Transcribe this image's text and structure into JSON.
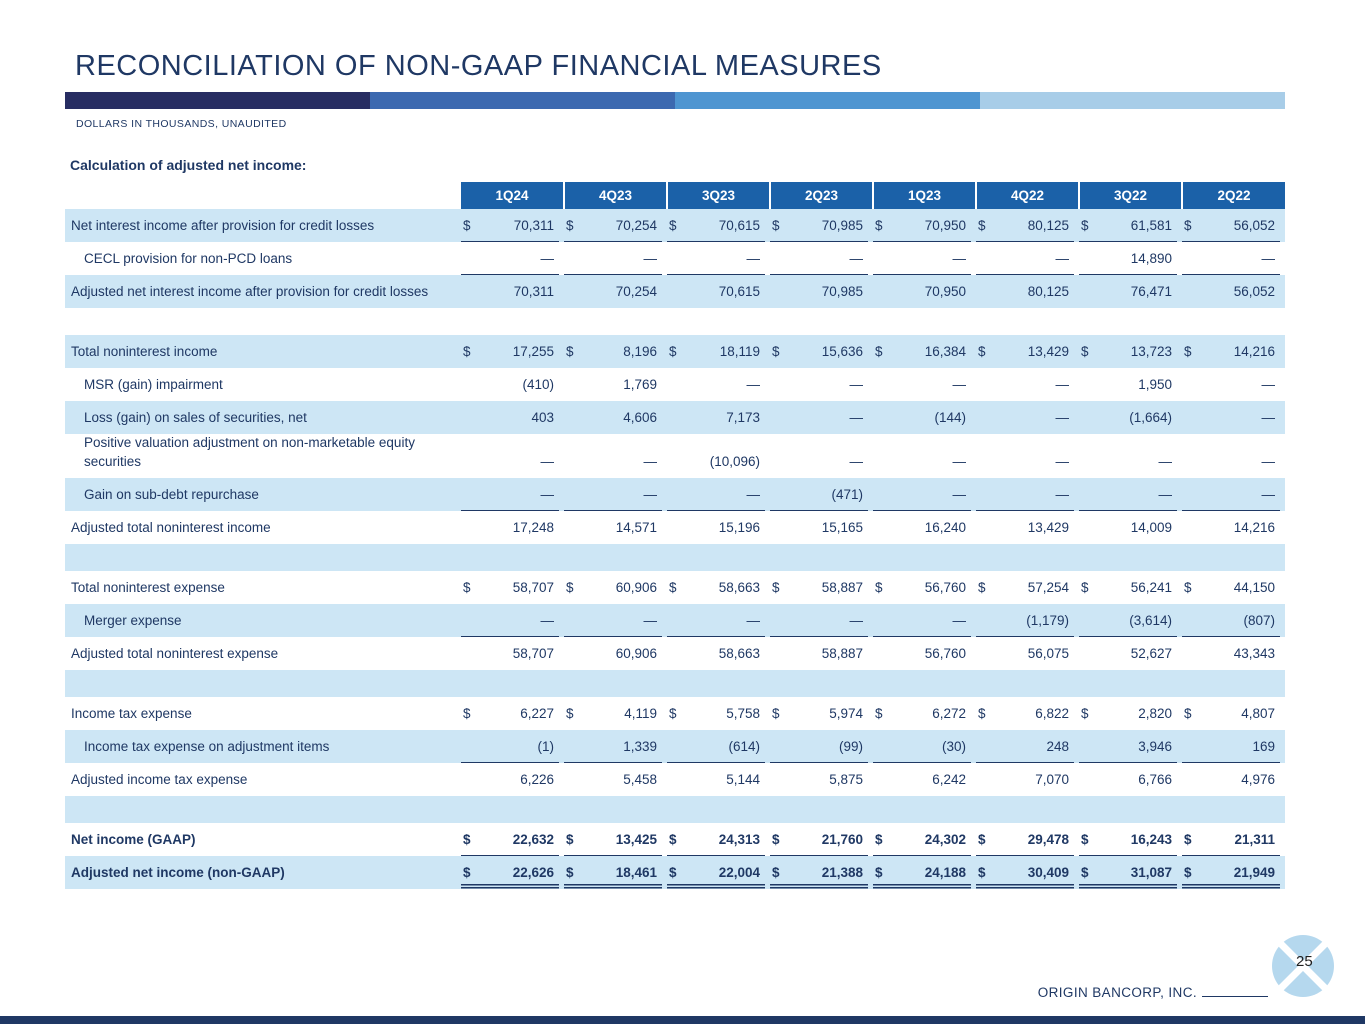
{
  "page": {
    "title": "RECONCILIATION OF NON-GAAP FINANCIAL MEASURES",
    "subtitle": "DOLLARS IN THOUSANDS, UNAUDITED",
    "section_heading": "Calculation of adjusted net income:",
    "company": "ORIGIN BANCORP, INC.",
    "page_number": "25"
  },
  "colors": {
    "navy_text": "#1f3864",
    "header_blue": "#1b61a8",
    "stripe_blue": "#cde6f5",
    "bottom_bar": "#1f3864",
    "logo_blue": "#b5d8ee",
    "bar_segments": [
      "#272d62",
      "#3c69b0",
      "#4e95d1",
      "#a8cde8"
    ]
  },
  "table": {
    "columns": [
      "1Q24",
      "4Q23",
      "3Q23",
      "2Q23",
      "1Q23",
      "4Q22",
      "3Q22",
      "2Q22"
    ],
    "rows": [
      {
        "label": "Net interest income after provision for credit losses",
        "indent": 0,
        "dollar": true,
        "rule": "single",
        "values": [
          "70,311",
          "70,254",
          "70,615",
          "70,985",
          "70,950",
          "80,125",
          "61,581",
          "56,052"
        ]
      },
      {
        "label": "CECL provision for non-PCD loans",
        "indent": 1,
        "rule": "single",
        "values": [
          "—",
          "—",
          "—",
          "—",
          "—",
          "—",
          "14,890",
          "—"
        ]
      },
      {
        "label": "Adjusted net interest income after provision for credit losses",
        "indent": 0,
        "values": [
          "70,311",
          "70,254",
          "70,615",
          "70,985",
          "70,950",
          "80,125",
          "76,471",
          "56,052"
        ]
      },
      {
        "blank": true
      },
      {
        "label": "Total noninterest income",
        "indent": 0,
        "dollar": true,
        "values": [
          "17,255",
          "8,196",
          "18,119",
          "15,636",
          "16,384",
          "13,429",
          "13,723",
          "14,216"
        ]
      },
      {
        "label": "MSR (gain) impairment",
        "indent": 1,
        "values": [
          "(410)",
          "1,769",
          "—",
          "—",
          "—",
          "—",
          "1,950",
          "—"
        ]
      },
      {
        "label": "Loss (gain) on sales of securities, net",
        "indent": 1,
        "values": [
          "403",
          "4,606",
          "7,173",
          "—",
          "(144)",
          "—",
          "(1,664)",
          "—"
        ]
      },
      {
        "label": "Positive valuation adjustment on non-marketable equity securities",
        "indent": 1,
        "values": [
          "—",
          "—",
          "(10,096)",
          "—",
          "—",
          "—",
          "—",
          "—"
        ]
      },
      {
        "label": "Gain on sub-debt repurchase",
        "indent": 1,
        "rule": "single",
        "values": [
          "—",
          "—",
          "—",
          "(471)",
          "—",
          "—",
          "—",
          "—"
        ]
      },
      {
        "label": "Adjusted total noninterest income",
        "indent": 0,
        "values": [
          "17,248",
          "14,571",
          "15,196",
          "15,165",
          "16,240",
          "13,429",
          "14,009",
          "14,216"
        ]
      },
      {
        "blank": true
      },
      {
        "label": "Total noninterest expense",
        "indent": 0,
        "dollar": true,
        "values": [
          "58,707",
          "60,906",
          "58,663",
          "58,887",
          "56,760",
          "57,254",
          "56,241",
          "44,150"
        ]
      },
      {
        "label": "Merger expense",
        "indent": 1,
        "rule": "single",
        "values": [
          "—",
          "—",
          "—",
          "—",
          "—",
          "(1,179)",
          "(3,614)",
          "(807)"
        ]
      },
      {
        "label": "Adjusted total noninterest expense",
        "indent": 0,
        "values": [
          "58,707",
          "60,906",
          "58,663",
          "58,887",
          "56,760",
          "56,075",
          "52,627",
          "43,343"
        ]
      },
      {
        "blank": true
      },
      {
        "label": "Income tax expense",
        "indent": 0,
        "dollar": true,
        "values": [
          "6,227",
          "4,119",
          "5,758",
          "5,974",
          "6,272",
          "6,822",
          "2,820",
          "4,807"
        ]
      },
      {
        "label": "Income tax expense on adjustment items",
        "indent": 1,
        "rule": "single",
        "values": [
          "(1)",
          "1,339",
          "(614)",
          "(99)",
          "(30)",
          "248",
          "3,946",
          "169"
        ]
      },
      {
        "label": "Adjusted income tax expense",
        "indent": 0,
        "values": [
          "6,226",
          "5,458",
          "5,144",
          "5,875",
          "6,242",
          "7,070",
          "6,766",
          "4,976"
        ]
      },
      {
        "blank": true
      },
      {
        "label": "Net income (GAAP)",
        "indent": 0,
        "dollar": true,
        "bold": true,
        "rule": "single",
        "values": [
          "22,632",
          "13,425",
          "24,313",
          "21,760",
          "24,302",
          "29,478",
          "16,243",
          "21,311"
        ]
      },
      {
        "label": "Adjusted net income (non-GAAP)",
        "indent": 0,
        "dollar": true,
        "bold": true,
        "rule": "double",
        "values": [
          "22,626",
          "18,461",
          "22,004",
          "21,388",
          "24,188",
          "30,409",
          "31,087",
          "21,949"
        ]
      }
    ]
  }
}
